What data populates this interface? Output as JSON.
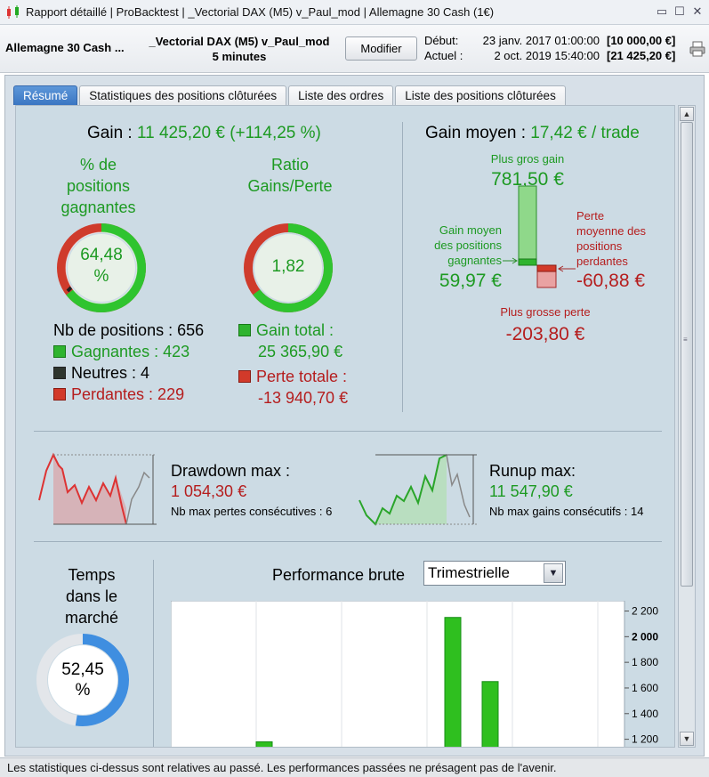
{
  "window": {
    "title_parts": [
      "Rapport détaillé",
      "ProBacktest",
      "_Vectorial DAX (M5) v_Paul_mod",
      "Allemagne 30 Cash (1€)"
    ],
    "controls": [
      "restore-icon",
      "maximize-icon",
      "close-icon"
    ]
  },
  "header": {
    "instrument": "Allemagne 30 Cash ...",
    "strategy_line1": "_Vectorial DAX (M5) v_Paul_mod",
    "strategy_line2": "5 minutes",
    "modify_label": "Modifier",
    "start_label": "Début:",
    "start_date": "23 janv. 2017 01:00:00",
    "start_amount": "[10 000,00 €]",
    "current_label": "Actuel :",
    "current_date": "2 oct. 2019 15:40:00",
    "current_amount": "[21 425,20 €]"
  },
  "tabs": [
    {
      "label": "Résumé",
      "active": true
    },
    {
      "label": "Statistiques des positions clôturées",
      "active": false
    },
    {
      "label": "Liste des ordres",
      "active": false
    },
    {
      "label": "Liste des positions clôturées",
      "active": false
    }
  ],
  "summary": {
    "gain_label": "Gain :",
    "gain_value": "11 425,20 € (+114,25 %)",
    "pct_winning_title": [
      "% de",
      "positions",
      "gagnantes"
    ],
    "pct_winning_value": [
      "64,48",
      "%"
    ],
    "pct_winning_fraction": 0.6448,
    "ratio_title": [
      "Ratio",
      "Gains/Perte"
    ],
    "ratio_value": "1,82",
    "ratio_fraction": 0.6453,
    "nb_positions_label": "Nb de positions : 656",
    "winning_label": "Gagnantes : 423",
    "neutral_label": "Neutres : 4",
    "losing_label": "Perdantes : 229",
    "gain_total_label": "Gain total :",
    "gain_total_value": "25 365,90 €",
    "loss_total_label": "Perte totale :",
    "loss_total_value": "-13 940,70 €"
  },
  "avg": {
    "label": "Gain moyen :",
    "value": "17,42 € / trade",
    "biggest_gain_label": "Plus gros gain",
    "biggest_gain_value": "781,50 €",
    "avg_win_label": [
      "Gain moyen",
      "des positions",
      "gagnantes"
    ],
    "avg_win_value": "59,97 €",
    "avg_loss_label": [
      "Perte",
      "moyenne des",
      "positions",
      "perdantes"
    ],
    "avg_loss_value": "-60,88 €",
    "biggest_loss_label": "Plus grosse perte",
    "biggest_loss_value": "-203,80 €"
  },
  "drawdown": {
    "title": "Drawdown max :",
    "value": "1 054,30 €",
    "sub": "Nb max pertes consécutives : 6"
  },
  "runup": {
    "title": "Runup max:",
    "value": "11 547,90 €",
    "sub": "Nb max gains consécutifs : 14"
  },
  "market_time": {
    "title": [
      "Temps",
      "dans le",
      "marché"
    ],
    "value": [
      "52,45",
      "%"
    ],
    "fraction": 0.5245
  },
  "performance": {
    "label": "Performance brute",
    "period_selected": "Trimestrielle"
  },
  "chart_data": {
    "type": "bar",
    "ytick_labels": [
      "2 200",
      "2 000",
      "1 800",
      "1 600",
      "1 400",
      "1 200"
    ],
    "yticks": [
      2200,
      2000,
      1800,
      1600,
      1400,
      1200
    ],
    "ylim": [
      1100,
      2280
    ],
    "bar_color": "#2fbf1f",
    "values": [
      1180,
      2150,
      1650
    ]
  },
  "footer": "Les statistiques ci-dessus sont relatives au passé. Les performances passées ne présagent pas de l'avenir.",
  "colors": {
    "green": "#1d9a22",
    "red": "#b51d1d",
    "panel": "#ccdbe4",
    "tab_active": "#3b76c2"
  }
}
